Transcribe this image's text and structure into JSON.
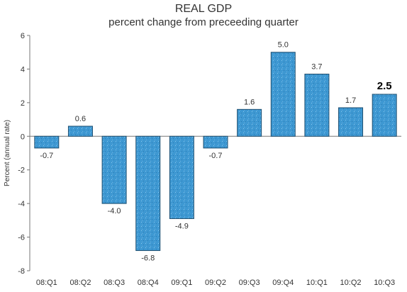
{
  "chart_data": {
    "type": "bar",
    "title": "REAL GDP",
    "subtitle": "percent change from preceeding quarter",
    "ylabel": "Percent (annual rate)",
    "xlabel": "",
    "ylim": [
      -8,
      6
    ],
    "yticks": [
      6,
      4,
      2,
      0,
      -2,
      -4,
      -6,
      -8
    ],
    "categories": [
      "08:Q1",
      "08:Q2",
      "08:Q3",
      "08:Q4",
      "09:Q1",
      "09:Q2",
      "09:Q3",
      "09:Q4",
      "10:Q1",
      "10:Q2",
      "10:Q3"
    ],
    "values": [
      -0.7,
      0.6,
      -4.0,
      -6.8,
      -4.9,
      -0.7,
      1.6,
      5.0,
      3.7,
      1.7,
      2.5
    ],
    "data_labels": [
      "-0.7",
      "0.6",
      "-4.0",
      "-6.8",
      "-4.9",
      "-0.7",
      "1.6",
      "5.0",
      "3.7",
      "1.7",
      "2.5"
    ],
    "highlighted_label_index": 10,
    "grid": false,
    "colors": {
      "bar_fill": "#3e98d2",
      "bar_edge": "#1f4f70",
      "axis": "#777777",
      "text": "#333333",
      "highlight_text": "#000000"
    }
  }
}
